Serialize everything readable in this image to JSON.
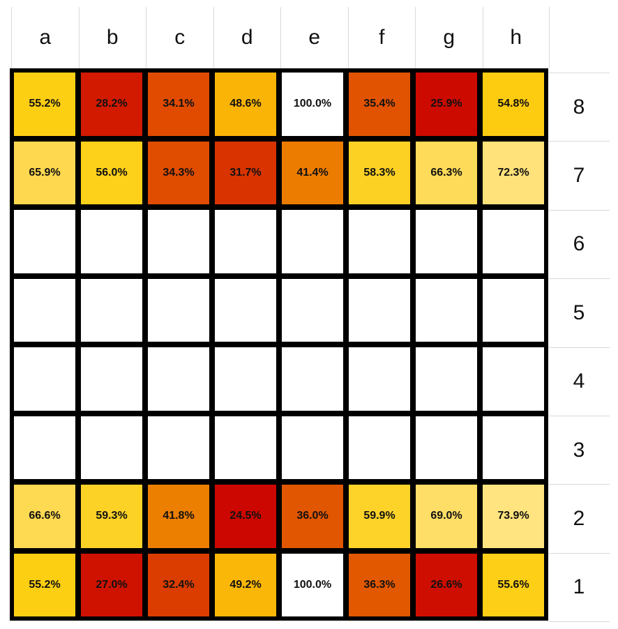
{
  "chart_data": {
    "type": "heatmap",
    "title": "",
    "xlabel": "",
    "ylabel": "",
    "x": [
      "a",
      "b",
      "c",
      "d",
      "e",
      "f",
      "g",
      "h"
    ],
    "y": [
      "8",
      "7",
      "6",
      "5",
      "4",
      "3",
      "2",
      "1"
    ],
    "values": [
      [
        55.2,
        28.2,
        34.1,
        48.6,
        100.0,
        35.4,
        25.9,
        54.8
      ],
      [
        65.9,
        56.0,
        34.3,
        31.7,
        41.4,
        58.3,
        66.3,
        72.3
      ],
      [
        null,
        null,
        null,
        null,
        null,
        null,
        null,
        null
      ],
      [
        null,
        null,
        null,
        null,
        null,
        null,
        null,
        null
      ],
      [
        null,
        null,
        null,
        null,
        null,
        null,
        null,
        null
      ],
      [
        null,
        null,
        null,
        null,
        null,
        null,
        null,
        null
      ],
      [
        66.6,
        59.3,
        41.8,
        24.5,
        36.0,
        59.9,
        69.0,
        73.9
      ],
      [
        55.2,
        27.0,
        32.4,
        49.2,
        100.0,
        36.3,
        26.6,
        55.6
      ]
    ],
    "unit": "%",
    "color_scale": "low = red (#cc0a00), mid = orange (#e85d00), high = light yellow (#ffe27a); 100% = white",
    "grid": true
  },
  "board": {
    "files": [
      "a",
      "b",
      "c",
      "d",
      "e",
      "f",
      "g",
      "h"
    ],
    "ranks": [
      "8",
      "7",
      "6",
      "5",
      "4",
      "3",
      "2",
      "1"
    ],
    "rows": [
      {
        "rank": "8",
        "cells": [
          {
            "label": "55.2%",
            "color": "#fdcf13"
          },
          {
            "label": "28.2%",
            "color": "#d11a00"
          },
          {
            "label": "34.1%",
            "color": "#e04b00"
          },
          {
            "label": "48.6%",
            "color": "#fab406"
          },
          {
            "label": "100.0%",
            "color": "#ffffff"
          },
          {
            "label": "35.4%",
            "color": "#e15300"
          },
          {
            "label": "25.9%",
            "color": "#cd0a00"
          },
          {
            "label": "54.8%",
            "color": "#fdcc11"
          }
        ]
      },
      {
        "rank": "7",
        "cells": [
          {
            "label": "65.9%",
            "color": "#fed84f"
          },
          {
            "label": "56.0%",
            "color": "#fdd01a"
          },
          {
            "label": "34.3%",
            "color": "#e04c00"
          },
          {
            "label": "31.7%",
            "color": "#d93400"
          },
          {
            "label": "41.4%",
            "color": "#ec7c00"
          },
          {
            "label": "58.3%",
            "color": "#fdd124"
          },
          {
            "label": "66.3%",
            "color": "#fedb58"
          },
          {
            "label": "72.3%",
            "color": "#ffe27a"
          }
        ]
      },
      {
        "rank": "6",
        "cells": [
          {
            "label": "",
            "color": "#ffffff"
          },
          {
            "label": "",
            "color": "#ffffff"
          },
          {
            "label": "",
            "color": "#ffffff"
          },
          {
            "label": "",
            "color": "#ffffff"
          },
          {
            "label": "",
            "color": "#ffffff"
          },
          {
            "label": "",
            "color": "#ffffff"
          },
          {
            "label": "",
            "color": "#ffffff"
          },
          {
            "label": "",
            "color": "#ffffff"
          }
        ]
      },
      {
        "rank": "5",
        "cells": [
          {
            "label": "",
            "color": "#ffffff"
          },
          {
            "label": "",
            "color": "#ffffff"
          },
          {
            "label": "",
            "color": "#ffffff"
          },
          {
            "label": "",
            "color": "#ffffff"
          },
          {
            "label": "",
            "color": "#ffffff"
          },
          {
            "label": "",
            "color": "#ffffff"
          },
          {
            "label": "",
            "color": "#ffffff"
          },
          {
            "label": "",
            "color": "#ffffff"
          }
        ]
      },
      {
        "rank": "4",
        "cells": [
          {
            "label": "",
            "color": "#ffffff"
          },
          {
            "label": "",
            "color": "#ffffff"
          },
          {
            "label": "",
            "color": "#ffffff"
          },
          {
            "label": "",
            "color": "#ffffff"
          },
          {
            "label": "",
            "color": "#ffffff"
          },
          {
            "label": "",
            "color": "#ffffff"
          },
          {
            "label": "",
            "color": "#ffffff"
          },
          {
            "label": "",
            "color": "#ffffff"
          }
        ]
      },
      {
        "rank": "3",
        "cells": [
          {
            "label": "",
            "color": "#ffffff"
          },
          {
            "label": "",
            "color": "#ffffff"
          },
          {
            "label": "",
            "color": "#ffffff"
          },
          {
            "label": "",
            "color": "#ffffff"
          },
          {
            "label": "",
            "color": "#ffffff"
          },
          {
            "label": "",
            "color": "#ffffff"
          },
          {
            "label": "",
            "color": "#ffffff"
          },
          {
            "label": "",
            "color": "#ffffff"
          }
        ]
      },
      {
        "rank": "2",
        "cells": [
          {
            "label": "66.6%",
            "color": "#fed952"
          },
          {
            "label": "59.3%",
            "color": "#fdd226"
          },
          {
            "label": "41.8%",
            "color": "#ec7e00"
          },
          {
            "label": "24.5%",
            "color": "#cc0600"
          },
          {
            "label": "36.0%",
            "color": "#e15600"
          },
          {
            "label": "59.9%",
            "color": "#fdd32a"
          },
          {
            "label": "69.0%",
            "color": "#fede66"
          },
          {
            "label": "73.9%",
            "color": "#ffe47f"
          }
        ]
      },
      {
        "rank": "1",
        "cells": [
          {
            "label": "55.2%",
            "color": "#fdcf13"
          },
          {
            "label": "27.0%",
            "color": "#cf1200"
          },
          {
            "label": "32.4%",
            "color": "#db3d00"
          },
          {
            "label": "49.2%",
            "color": "#fab708"
          },
          {
            "label": "100.0%",
            "color": "#ffffff"
          },
          {
            "label": "36.3%",
            "color": "#e25800"
          },
          {
            "label": "26.6%",
            "color": "#ce0e00"
          },
          {
            "label": "55.6%",
            "color": "#fdcf16"
          }
        ]
      }
    ]
  }
}
